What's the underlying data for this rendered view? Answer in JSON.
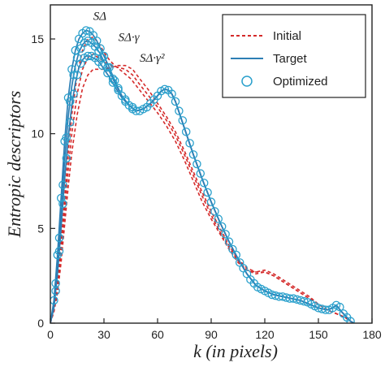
{
  "chart_data": {
    "type": "line",
    "xlabel": "k (in pixels)",
    "ylabel": "Entropic descriptors",
    "xlim": [
      0,
      180
    ],
    "ylim": [
      0,
      16.8
    ],
    "xticks": [
      0,
      30,
      60,
      90,
      120,
      150,
      180
    ],
    "yticks": [
      0,
      5,
      10,
      15
    ],
    "grid": false,
    "legend_position": "top-right",
    "legend": [
      {
        "name": "Initial",
        "style": "dashed",
        "color": "#d42a2a"
      },
      {
        "name": "Target",
        "style": "solid",
        "color": "#2d7fb5"
      },
      {
        "name": "Optimized",
        "style": "marker-circle",
        "color": "#2aa0cc"
      }
    ],
    "curve_labels": [
      {
        "text": "SΔ",
        "x": 24,
        "y": 16.0
      },
      {
        "text": "SΔ·γ",
        "x": 38,
        "y": 14.9
      },
      {
        "text": "SΔ·γ²",
        "x": 50,
        "y": 13.8
      }
    ],
    "colors": {
      "initial": "#d42a2a",
      "target": "#2d7fb5",
      "optimized": "#2aa0cc",
      "axis": "#222222"
    },
    "series": [
      {
        "name": "Initial",
        "curve": "SΔ",
        "x": [
          0,
          2,
          4,
          6,
          8,
          10,
          12,
          15,
          18,
          21,
          24,
          27,
          30,
          33,
          36,
          40,
          45,
          50,
          55,
          60,
          65,
          70,
          75,
          80,
          85,
          90,
          95,
          100,
          105,
          110,
          115,
          120,
          125,
          130,
          135,
          140,
          145,
          150,
          155,
          160,
          165,
          168,
          170
        ],
        "y": [
          0,
          0.8,
          2.2,
          4.2,
          6.6,
          9.0,
          11.0,
          13.1,
          14.4,
          15.0,
          15.1,
          14.8,
          14.3,
          13.9,
          13.6,
          13.3,
          12.9,
          12.3,
          11.7,
          11.1,
          10.4,
          9.6,
          8.6,
          7.5,
          6.4,
          5.5,
          4.7,
          3.9,
          3.2,
          2.8,
          2.7,
          2.8,
          2.6,
          2.3,
          2.0,
          1.7,
          1.4,
          1.0,
          0.7,
          0.5,
          0.3,
          0.1,
          0
        ]
      },
      {
        "name": "Initial",
        "curve": "SΔ·γ",
        "x": [
          0,
          2,
          4,
          6,
          8,
          10,
          12,
          15,
          18,
          21,
          24,
          27,
          30,
          34,
          38,
          42,
          46,
          50,
          55,
          60,
          65,
          70,
          75,
          80,
          85,
          90,
          95,
          100,
          105,
          110,
          115,
          120,
          125,
          130,
          135,
          140,
          145,
          150,
          155,
          160,
          165,
          168,
          170
        ],
        "y": [
          0,
          0.7,
          1.9,
          3.7,
          5.9,
          8.1,
          10.0,
          12.1,
          13.4,
          14.0,
          14.2,
          14.0,
          13.8,
          13.6,
          13.5,
          13.4,
          13.1,
          12.6,
          12.0,
          11.4,
          10.7,
          9.9,
          8.9,
          7.8,
          6.7,
          5.7,
          4.8,
          4.0,
          3.3,
          2.8,
          2.6,
          2.7,
          2.5,
          2.2,
          1.9,
          1.6,
          1.3,
          1.0,
          0.7,
          0.5,
          0.3,
          0.1,
          0
        ]
      },
      {
        "name": "Initial",
        "curve": "SΔ·γ²",
        "x": [
          0,
          2,
          4,
          6,
          8,
          10,
          12,
          15,
          18,
          21,
          24,
          27,
          30,
          34,
          38,
          42,
          46,
          50,
          55,
          60,
          65,
          70,
          75,
          80,
          85,
          90,
          95,
          100,
          105,
          110,
          115,
          120,
          125,
          130,
          135,
          140,
          145,
          150,
          155,
          160,
          165,
          168,
          170
        ],
        "y": [
          0,
          0.6,
          1.6,
          3.2,
          5.2,
          7.2,
          9.0,
          11.0,
          12.4,
          13.1,
          13.4,
          13.4,
          13.4,
          13.5,
          13.6,
          13.6,
          13.4,
          12.9,
          12.3,
          11.6,
          10.9,
          10.1,
          9.1,
          8.0,
          6.9,
          5.9,
          5.0,
          4.1,
          3.4,
          2.9,
          2.7,
          2.7,
          2.5,
          2.2,
          1.9,
          1.6,
          1.3,
          1.0,
          0.7,
          0.5,
          0.3,
          0.1,
          0
        ]
      },
      {
        "name": "Target",
        "curve": "SΔ",
        "x": [
          0,
          2,
          4,
          6,
          8,
          10,
          12,
          14,
          16,
          18,
          20,
          22,
          24,
          26,
          28,
          30,
          33,
          36,
          40,
          44,
          48,
          52,
          56,
          60,
          62,
          64,
          66,
          68,
          70,
          75,
          80,
          85,
          90,
          95,
          100,
          105,
          110,
          115,
          120,
          125,
          130,
          135,
          140,
          145,
          150,
          155,
          158,
          160,
          163,
          166,
          168,
          170
        ],
        "y": [
          0,
          1.2,
          3.6,
          6.6,
          9.6,
          11.9,
          13.4,
          14.4,
          15.0,
          15.3,
          15.45,
          15.4,
          15.2,
          14.9,
          14.5,
          14.1,
          13.5,
          12.8,
          12.0,
          11.5,
          11.2,
          11.3,
          11.6,
          12.0,
          12.25,
          12.35,
          12.3,
          12.1,
          11.7,
          10.3,
          8.9,
          7.6,
          6.4,
          5.3,
          4.3,
          3.4,
          2.6,
          2.0,
          1.7,
          1.5,
          1.4,
          1.3,
          1.2,
          1.0,
          0.8,
          0.7,
          0.8,
          0.95,
          0.6,
          0.3,
          0.1,
          0
        ]
      },
      {
        "name": "Target",
        "curve": "SΔ·γ",
        "x": [
          0,
          2,
          4,
          6,
          8,
          10,
          12,
          14,
          16,
          18,
          20,
          22,
          24,
          26,
          28,
          30,
          33,
          36,
          40,
          44,
          48,
          52,
          56,
          60,
          62,
          64,
          66,
          68,
          70,
          75,
          80,
          85,
          90,
          95,
          100,
          105,
          110,
          115,
          120,
          125,
          130,
          135,
          140,
          145,
          150,
          155,
          158,
          160,
          163,
          166,
          168,
          170
        ],
        "y": [
          0,
          1.0,
          3.1,
          5.8,
          8.6,
          10.9,
          12.5,
          13.6,
          14.3,
          14.7,
          14.9,
          14.85,
          14.7,
          14.5,
          14.2,
          13.8,
          13.3,
          12.7,
          12.0,
          11.5,
          11.2,
          11.3,
          11.6,
          12.0,
          12.25,
          12.35,
          12.3,
          12.1,
          11.7,
          10.3,
          8.9,
          7.6,
          6.4,
          5.3,
          4.3,
          3.4,
          2.6,
          2.0,
          1.7,
          1.5,
          1.4,
          1.3,
          1.2,
          1.0,
          0.8,
          0.7,
          0.8,
          0.95,
          0.6,
          0.3,
          0.1,
          0
        ]
      },
      {
        "name": "Target",
        "curve": "SΔ·γ²",
        "x": [
          0,
          2,
          4,
          6,
          8,
          10,
          12,
          14,
          16,
          18,
          20,
          22,
          24,
          26,
          28,
          30,
          33,
          36,
          40,
          44,
          48,
          52,
          56,
          60,
          62,
          64,
          66,
          68,
          70,
          75,
          80,
          85,
          90,
          95,
          100,
          105,
          110,
          115,
          120,
          125,
          130,
          135,
          140,
          145,
          150,
          155,
          158,
          160,
          163,
          166,
          168,
          170
        ],
        "y": [
          0,
          0.8,
          2.6,
          5.0,
          7.6,
          9.8,
          11.5,
          12.7,
          13.5,
          13.9,
          14.1,
          14.1,
          14.0,
          13.9,
          13.7,
          13.4,
          13.0,
          12.5,
          11.9,
          11.5,
          11.2,
          11.3,
          11.6,
          12.0,
          12.25,
          12.35,
          12.3,
          12.1,
          11.7,
          10.3,
          8.9,
          7.6,
          6.4,
          5.3,
          4.3,
          3.4,
          2.6,
          2.0,
          1.7,
          1.5,
          1.4,
          1.3,
          1.2,
          1.0,
          0.8,
          0.7,
          0.8,
          0.95,
          0.6,
          0.3,
          0.1,
          0
        ]
      },
      {
        "name": "Optimized",
        "curve": "SΔ",
        "x": [
          2,
          4,
          6,
          8,
          10,
          12,
          14,
          16,
          18,
          20,
          22,
          24,
          26,
          28,
          30,
          33,
          36,
          40,
          44,
          48,
          52,
          56,
          60,
          64,
          68,
          72,
          76,
          80,
          84,
          88,
          92,
          96,
          100,
          104,
          108,
          112,
          116,
          120,
          124,
          128,
          132,
          136,
          140,
          144,
          148,
          152,
          156,
          160,
          164,
          168
        ],
        "y": [
          1.2,
          3.6,
          6.6,
          9.6,
          11.9,
          13.4,
          14.4,
          15.0,
          15.3,
          15.45,
          15.4,
          15.2,
          14.9,
          14.5,
          14.1,
          13.5,
          12.8,
          12.0,
          11.5,
          11.2,
          11.3,
          11.6,
          12.0,
          12.35,
          12.1,
          11.2,
          10.1,
          8.9,
          7.9,
          6.9,
          5.9,
          5.1,
          4.3,
          3.6,
          2.9,
          2.3,
          1.9,
          1.7,
          1.5,
          1.4,
          1.35,
          1.3,
          1.2,
          1.1,
          0.9,
          0.75,
          0.7,
          0.95,
          0.5,
          0.1
        ]
      },
      {
        "name": "Optimized",
        "curve": "SΔ·γ",
        "x": [
          3,
          5,
          7,
          9,
          11,
          13,
          15,
          17,
          19,
          21,
          23,
          25,
          27,
          29,
          32,
          35,
          38,
          42,
          46,
          50,
          54,
          58,
          62,
          66,
          70,
          74,
          78,
          82,
          86,
          90,
          94,
          98,
          102,
          106,
          110,
          114,
          118,
          122,
          126,
          130,
          134,
          138,
          142,
          146,
          150,
          154,
          158,
          162,
          166
        ],
        "y": [
          2.1,
          4.5,
          7.3,
          9.8,
          11.7,
          13.1,
          14.0,
          14.5,
          14.8,
          14.9,
          14.8,
          14.6,
          14.35,
          14.0,
          13.5,
          12.9,
          12.4,
          11.7,
          11.3,
          11.2,
          11.4,
          11.8,
          12.25,
          12.3,
          11.7,
          10.7,
          9.5,
          8.4,
          7.4,
          6.4,
          5.5,
          4.7,
          3.9,
          3.2,
          2.6,
          2.1,
          1.8,
          1.6,
          1.45,
          1.4,
          1.3,
          1.25,
          1.15,
          1.0,
          0.8,
          0.7,
          0.8,
          0.85,
          0.3
        ]
      },
      {
        "name": "Optimized",
        "curve": "SΔ·γ²",
        "x": [
          3,
          5,
          7,
          9,
          11,
          13,
          15,
          17,
          19,
          21,
          23,
          25,
          27,
          29,
          32,
          35,
          38,
          42,
          46
        ],
        "y": [
          1.7,
          3.8,
          6.3,
          8.7,
          10.6,
          12.1,
          13.1,
          13.7,
          14.0,
          14.1,
          14.1,
          14.0,
          13.8,
          13.6,
          13.2,
          12.7,
          12.3,
          11.8,
          11.4
        ]
      }
    ]
  }
}
